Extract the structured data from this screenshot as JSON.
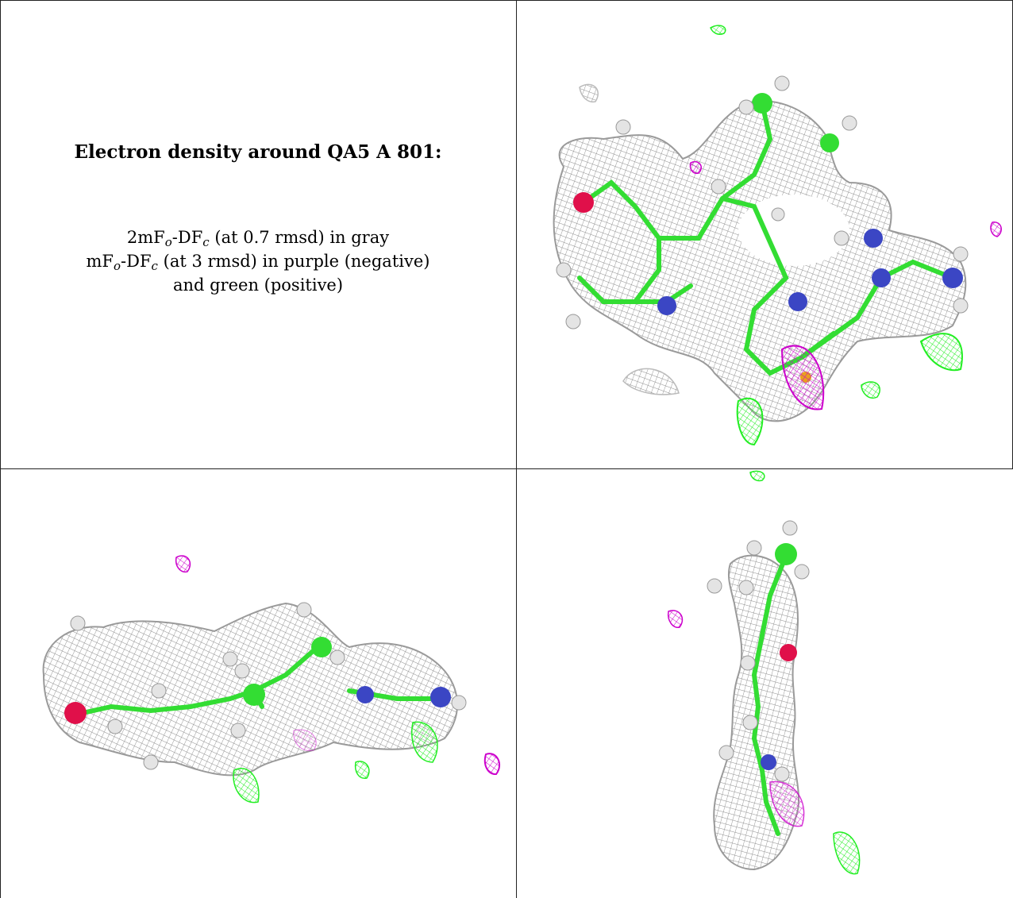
{
  "caption": {
    "title": "Electron density around QA5 A 801:",
    "line1": {
      "pre": "2mF",
      "sub1": "o",
      "mid": "-DF",
      "sub2": "c",
      "post": " (at 0.7 rmsd) in gray"
    },
    "line2": {
      "pre": "mF",
      "sub1": "o",
      "mid": "-DF",
      "sub2": "c",
      "post": " (at 3 rmsd) in purple (negative)"
    },
    "line3": "and green (positive)"
  },
  "colors": {
    "mesh_gray": "#8c8c8c",
    "mesh_negative": "#cc00cc",
    "mesh_positive": "#22ee22",
    "carbon": "#33dd33",
    "nitrogen": "#3b46c4",
    "oxygen": "#e0104a",
    "sulfur": "#e8a020",
    "hydrogen": "#e4e4e4"
  }
}
